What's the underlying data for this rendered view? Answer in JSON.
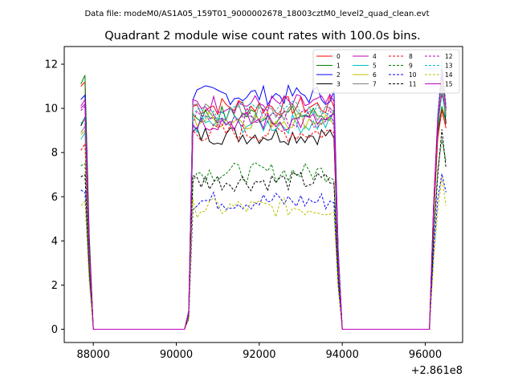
{
  "chart_data": {
    "type": "line",
    "suptitle": "Data file: modeM0/AS1A05_159T01_9000002678_18003cztM0_level2_quad_clean.evt",
    "title": "Quadrant 2 module wise count rates with 100.0s bins.",
    "xlabel": "",
    "ylabel": "",
    "x_offset_label": "+2.861e8",
    "xlim": [
      87300,
      96900
    ],
    "ylim": [
      -0.6,
      12.8
    ],
    "xticks": [
      88000,
      90000,
      92000,
      94000,
      96000
    ],
    "yticks": [
      0,
      2,
      4,
      6,
      8,
      10,
      12
    ],
    "grid": false,
    "legend_position": "top-right",
    "legend_columns": 4,
    "segments": [
      {
        "start": 87700,
        "n": 4
      },
      {
        "start": 90200,
        "n": 37
      },
      {
        "start": 93900,
        "n": 2
      },
      {
        "start": 96100,
        "n": 5
      }
    ],
    "series": [
      {
        "name": "0",
        "color": "#ff0000",
        "dash": false,
        "level": 10.1,
        "edge": [
          11.0,
          11.2
        ],
        "tail": 9.1
      },
      {
        "name": "1",
        "color": "#008000",
        "dash": false,
        "level": 9.7,
        "edge": [
          11.1,
          11.5
        ],
        "tail": 9.4
      },
      {
        "name": "2",
        "color": "#0000ff",
        "dash": false,
        "level": 10.6,
        "edge": [
          10.4,
          10.6
        ],
        "tail": 9.9
      },
      {
        "name": "3",
        "color": "#000000",
        "dash": false,
        "level": 8.8,
        "edge": [
          9.2,
          9.6
        ],
        "tail": 9.3
      },
      {
        "name": "4",
        "color": "#bf00bf",
        "dash": false,
        "level": 10.2,
        "edge": [
          10.1,
          10.4
        ],
        "tail": 10.0
      },
      {
        "name": "5",
        "color": "#00bfbf",
        "dash": false,
        "level": 9.3,
        "edge": [
          8.6,
          8.9
        ],
        "tail": 9.6
      },
      {
        "name": "6",
        "color": "#bfbf00",
        "dash": false,
        "level": 9.5,
        "edge": [
          8.8,
          9.0
        ],
        "tail": 9.8
      },
      {
        "name": "7",
        "color": "#808080",
        "dash": false,
        "level": 9.8,
        "edge": [
          8.9,
          9.2
        ],
        "tail": 9.7
      },
      {
        "name": "8",
        "color": "#ff0000",
        "dash": true,
        "level": 8.9,
        "edge": [
          8.1,
          8.4
        ],
        "tail": 9.2
      },
      {
        "name": "9",
        "color": "#008000",
        "dash": true,
        "level": 7.1,
        "edge": [
          7.4,
          7.5
        ],
        "tail": 7.6
      },
      {
        "name": "10",
        "color": "#0000ff",
        "dash": true,
        "level": 5.8,
        "edge": [
          6.3,
          6.2
        ],
        "tail": 6.2
      },
      {
        "name": "11",
        "color": "#000000",
        "dash": true,
        "level": 6.7,
        "edge": [
          6.9,
          7.0
        ],
        "tail": 7.3
      },
      {
        "name": "12",
        "color": "#bf00bf",
        "dash": true,
        "level": 9.6,
        "edge": [
          9.9,
          10.1
        ],
        "tail": 10.1
      },
      {
        "name": "13",
        "color": "#00bfbf",
        "dash": true,
        "level": 9.9,
        "edge": [
          9.3,
          9.6
        ],
        "tail": 10.2
      },
      {
        "name": "14",
        "color": "#bfbf00",
        "dash": true,
        "level": 5.5,
        "edge": [
          5.6,
          5.8
        ],
        "tail": 5.6
      },
      {
        "name": "15",
        "color": "#bf00bf",
        "dash": false,
        "level": 9.4,
        "edge": [
          10.0,
          10.2
        ],
        "tail": 10.0
      }
    ]
  }
}
